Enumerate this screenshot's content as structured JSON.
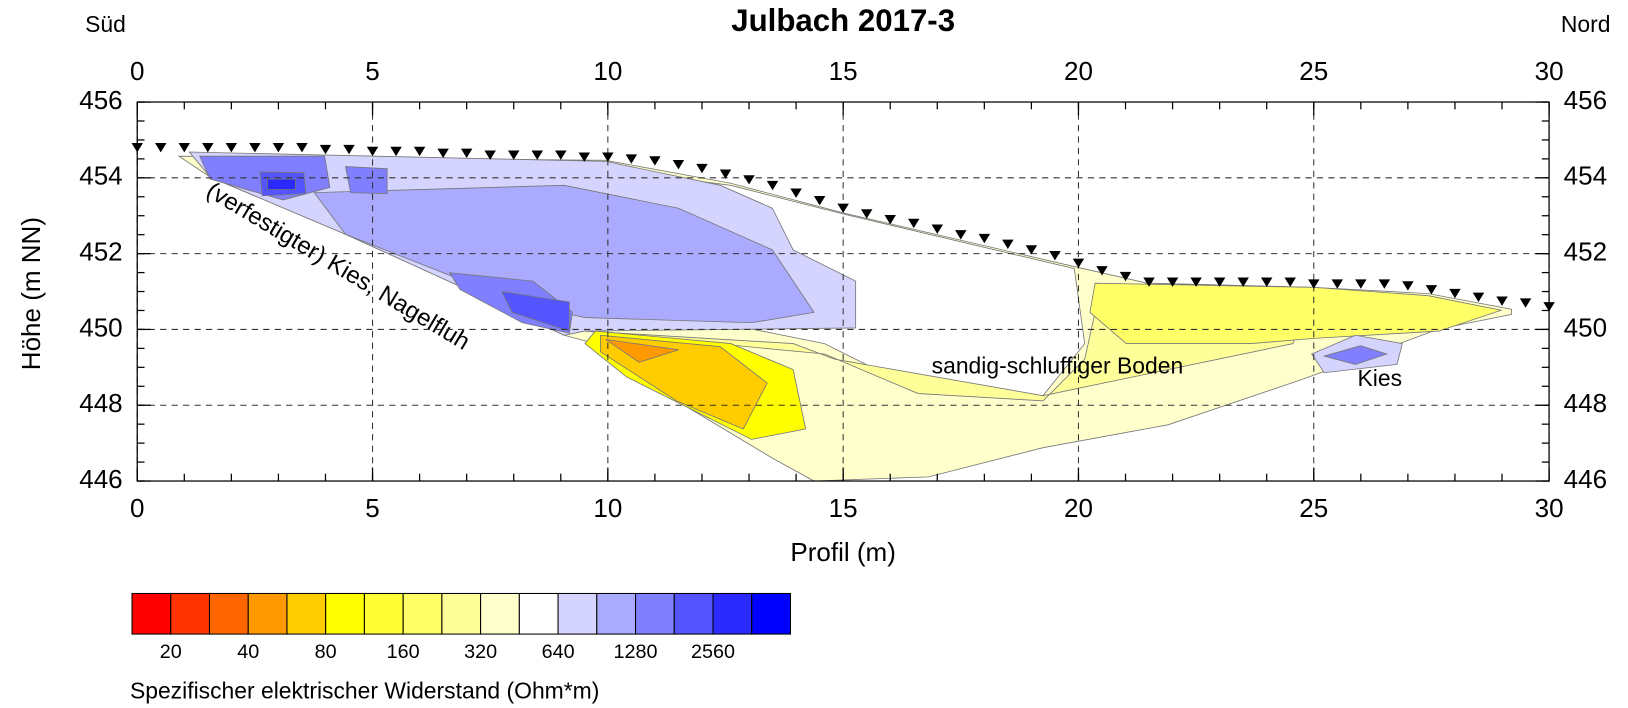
{
  "chart_data": {
    "type": "contour",
    "title": "Julbach 2017-3",
    "left_label": "Süd",
    "right_label": "Nord",
    "xlabel": "Profil (m)",
    "ylabel": "Höhe (m NN)",
    "xlim": [
      0,
      30
    ],
    "ylim": [
      446,
      456
    ],
    "xticks": [
      0,
      5,
      10,
      15,
      20,
      25,
      30
    ],
    "yticks": [
      446,
      448,
      450,
      452,
      454,
      456
    ],
    "grid": true,
    "annotations": [
      "(verfestigter) Kies, Nagelfluh",
      "sandig-schluffiger Boden",
      "Kies"
    ],
    "electrodes": {
      "color": "#000000",
      "x": [
        0,
        0.5,
        1,
        1.5,
        2,
        2.5,
        3,
        3.5,
        4,
        4.5,
        5,
        5.5,
        6,
        6.5,
        7,
        7.5,
        8,
        8.5,
        9,
        9.5,
        10,
        10.5,
        11,
        11.5,
        12,
        12.5,
        13,
        13.5,
        14,
        14.5,
        15,
        15.5,
        16,
        16.5,
        17,
        17.5,
        18,
        18.5,
        19,
        19.5,
        20,
        20.5,
        21,
        21.5,
        22,
        22.5,
        23,
        23.5,
        24,
        24.5,
        25,
        25.5,
        26,
        26.5,
        27,
        27.5,
        28,
        28.5,
        29,
        29.5,
        30
      ],
      "values": [
        454.7,
        454.7,
        454.7,
        454.7,
        454.7,
        454.7,
        454.7,
        454.7,
        454.65,
        454.65,
        454.6,
        454.6,
        454.6,
        454.55,
        454.55,
        454.5,
        454.5,
        454.5,
        454.5,
        454.45,
        454.45,
        454.4,
        454.35,
        454.25,
        454.15,
        454.0,
        453.85,
        453.7,
        453.5,
        453.3,
        453.1,
        452.95,
        452.8,
        452.7,
        452.55,
        452.4,
        452.3,
        452.15,
        452.0,
        451.85,
        451.65,
        451.45,
        451.3,
        451.15,
        451.15,
        451.15,
        451.15,
        451.15,
        451.15,
        451.15,
        451.1,
        451.1,
        451.1,
        451.1,
        451.05,
        450.95,
        450.85,
        450.75,
        450.65,
        450.6,
        450.5
      ]
    },
    "colorbar": {
      "label": "Spezifischer elektrischer Widerstand (Ohm*m)",
      "colors": [
        "#ff0000",
        "#ff3300",
        "#ff6600",
        "#ff9900",
        "#ffcc00",
        "#ffff00",
        "#ffff33",
        "#ffff66",
        "#ffff99",
        "#ffffcc",
        "#ffffff",
        "#d4d4ff",
        "#aaaaff",
        "#7f7fff",
        "#5555ff",
        "#2a2aff",
        "#0000ff"
      ],
      "levels": [
        20,
        40,
        80,
        160,
        320,
        640,
        1280,
        2560
      ]
    }
  }
}
